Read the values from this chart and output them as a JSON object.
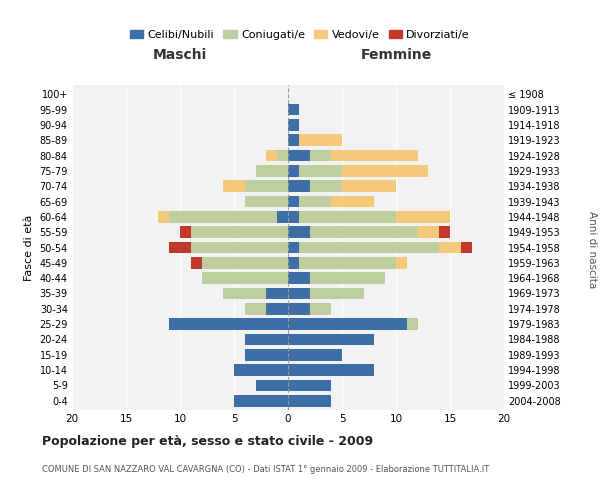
{
  "age_groups": [
    "0-4",
    "5-9",
    "10-14",
    "15-19",
    "20-24",
    "25-29",
    "30-34",
    "35-39",
    "40-44",
    "45-49",
    "50-54",
    "55-59",
    "60-64",
    "65-69",
    "70-74",
    "75-79",
    "80-84",
    "85-89",
    "90-94",
    "95-99",
    "100+"
  ],
  "birth_years": [
    "2004-2008",
    "1999-2003",
    "1994-1998",
    "1989-1993",
    "1984-1988",
    "1979-1983",
    "1974-1978",
    "1969-1973",
    "1964-1968",
    "1959-1963",
    "1954-1958",
    "1949-1953",
    "1944-1948",
    "1939-1943",
    "1934-1938",
    "1929-1933",
    "1924-1928",
    "1919-1923",
    "1914-1918",
    "1909-1913",
    "≤ 1908"
  ],
  "colors": {
    "celibi": "#3D6FA6",
    "coniugati": "#BFCEA0",
    "vedovi": "#F5C97A",
    "divorziati": "#C0392B"
  },
  "maschi": {
    "celibi": [
      5,
      3,
      5,
      4,
      4,
      11,
      2,
      2,
      0,
      0,
      0,
      0,
      1,
      0,
      0,
      0,
      0,
      0,
      0,
      0,
      0
    ],
    "coniugati": [
      0,
      0,
      0,
      0,
      0,
      0,
      2,
      4,
      8,
      8,
      9,
      9,
      10,
      4,
      4,
      3,
      1,
      0,
      0,
      0,
      0
    ],
    "vedovi": [
      0,
      0,
      0,
      0,
      0,
      0,
      0,
      0,
      0,
      0,
      0,
      0,
      1,
      0,
      2,
      0,
      1,
      0,
      0,
      0,
      0
    ],
    "divorziati": [
      0,
      0,
      0,
      0,
      0,
      0,
      0,
      0,
      0,
      1,
      2,
      1,
      0,
      0,
      0,
      0,
      0,
      0,
      0,
      0,
      0
    ]
  },
  "femmine": {
    "celibi": [
      4,
      4,
      8,
      5,
      8,
      11,
      2,
      2,
      2,
      1,
      1,
      2,
      1,
      1,
      2,
      1,
      2,
      1,
      1,
      1,
      0
    ],
    "coniugati": [
      0,
      0,
      0,
      0,
      0,
      1,
      2,
      5,
      7,
      9,
      13,
      10,
      9,
      3,
      3,
      4,
      2,
      0,
      0,
      0,
      0
    ],
    "vedovi": [
      0,
      0,
      0,
      0,
      0,
      0,
      0,
      0,
      0,
      1,
      2,
      2,
      5,
      4,
      5,
      8,
      8,
      4,
      0,
      0,
      0
    ],
    "divorziati": [
      0,
      0,
      0,
      0,
      0,
      0,
      0,
      0,
      0,
      0,
      1,
      1,
      0,
      0,
      0,
      0,
      0,
      0,
      0,
      0,
      0
    ]
  },
  "xlim": 20,
  "title": "Popolazione per età, sesso e stato civile - 2009",
  "subtitle": "COMUNE DI SAN NAZZARO VAL CAVARGNA (CO) - Dati ISTAT 1° gennaio 2009 - Elaborazione TUTTITALIA.IT",
  "ylabel_left": "Fasce di età",
  "ylabel_right": "Anni di nascita",
  "xlabel_maschi": "Maschi",
  "xlabel_femmine": "Femmine",
  "legend_labels": [
    "Celibi/Nubili",
    "Coniugati/e",
    "Vedovi/e",
    "Divorziati/e"
  ],
  "bg_color": "#FFFFFF",
  "plot_bg": "#F2F2F2"
}
